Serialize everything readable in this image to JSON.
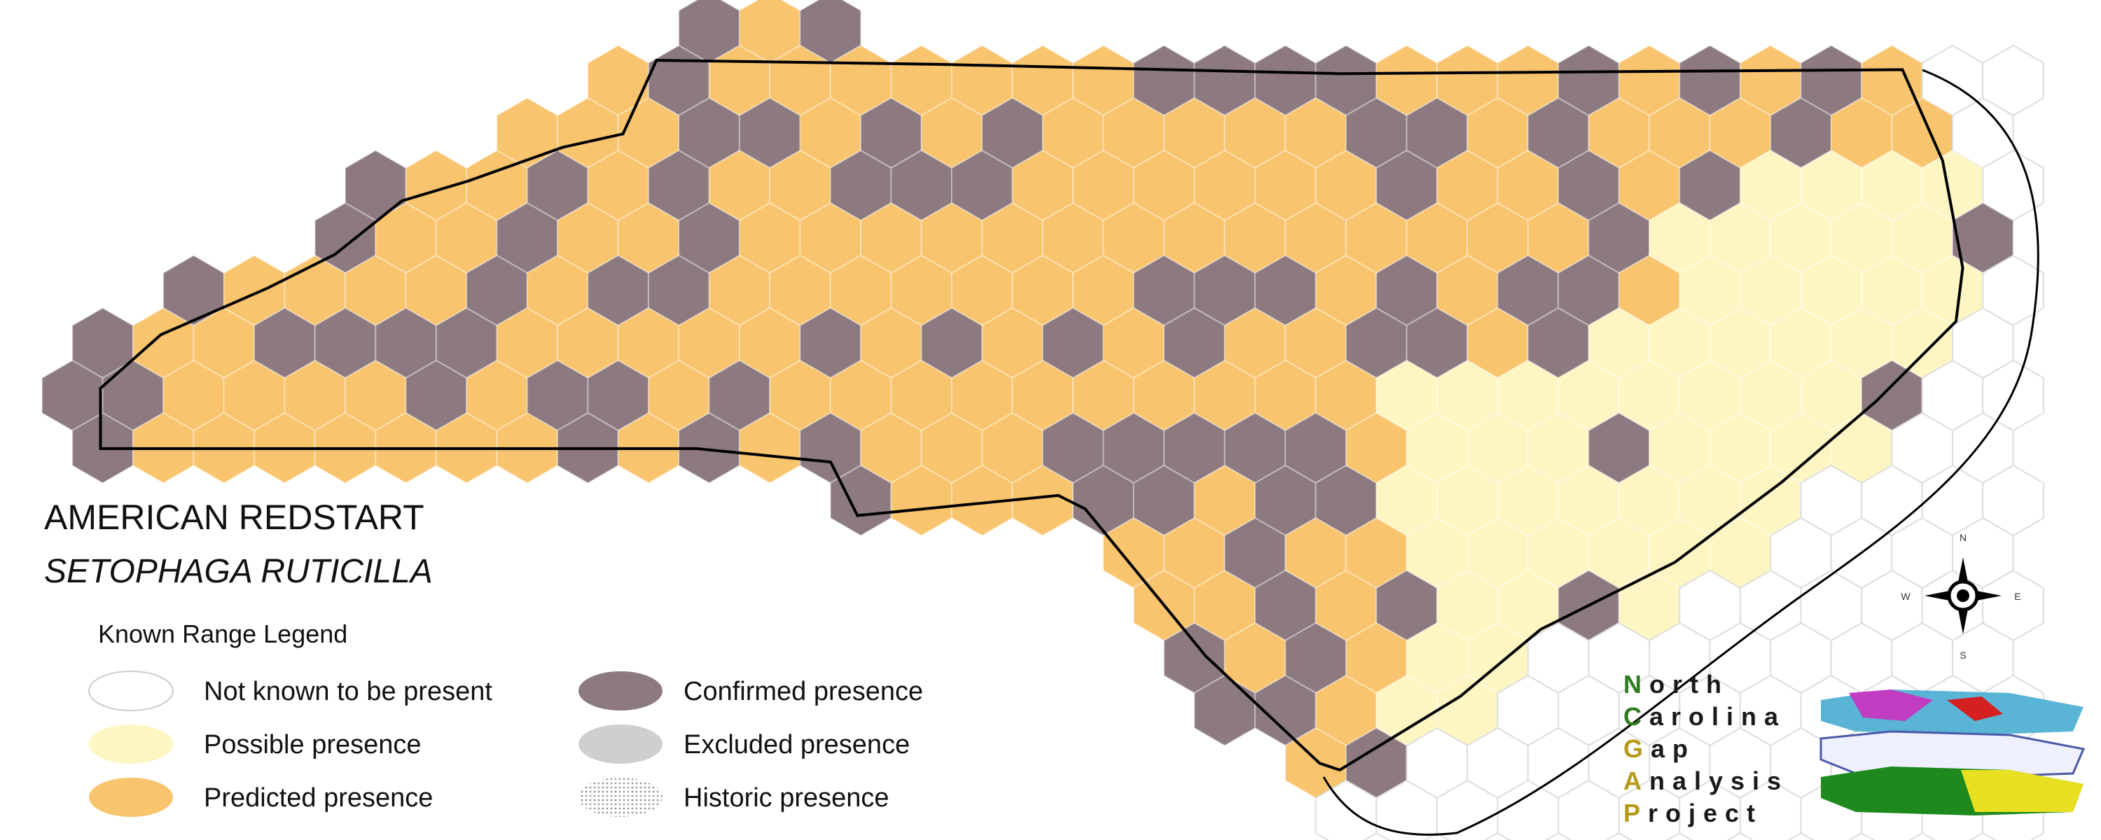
{
  "title": "AMERICAN REDSTART",
  "subtitle": "SETOPHAGA RUTICILLA",
  "legend": {
    "title": "Known Range Legend",
    "items": [
      "Not known to be present",
      "Possible presence",
      "Predicted presence",
      "Confirmed presence",
      "Excluded presence",
      "Historic presence"
    ]
  },
  "compass": [
    "N",
    "S",
    "W",
    "E"
  ],
  "logo": [
    "North",
    "Carolina",
    "Gap",
    "Analysis",
    "Project"
  ]
}
